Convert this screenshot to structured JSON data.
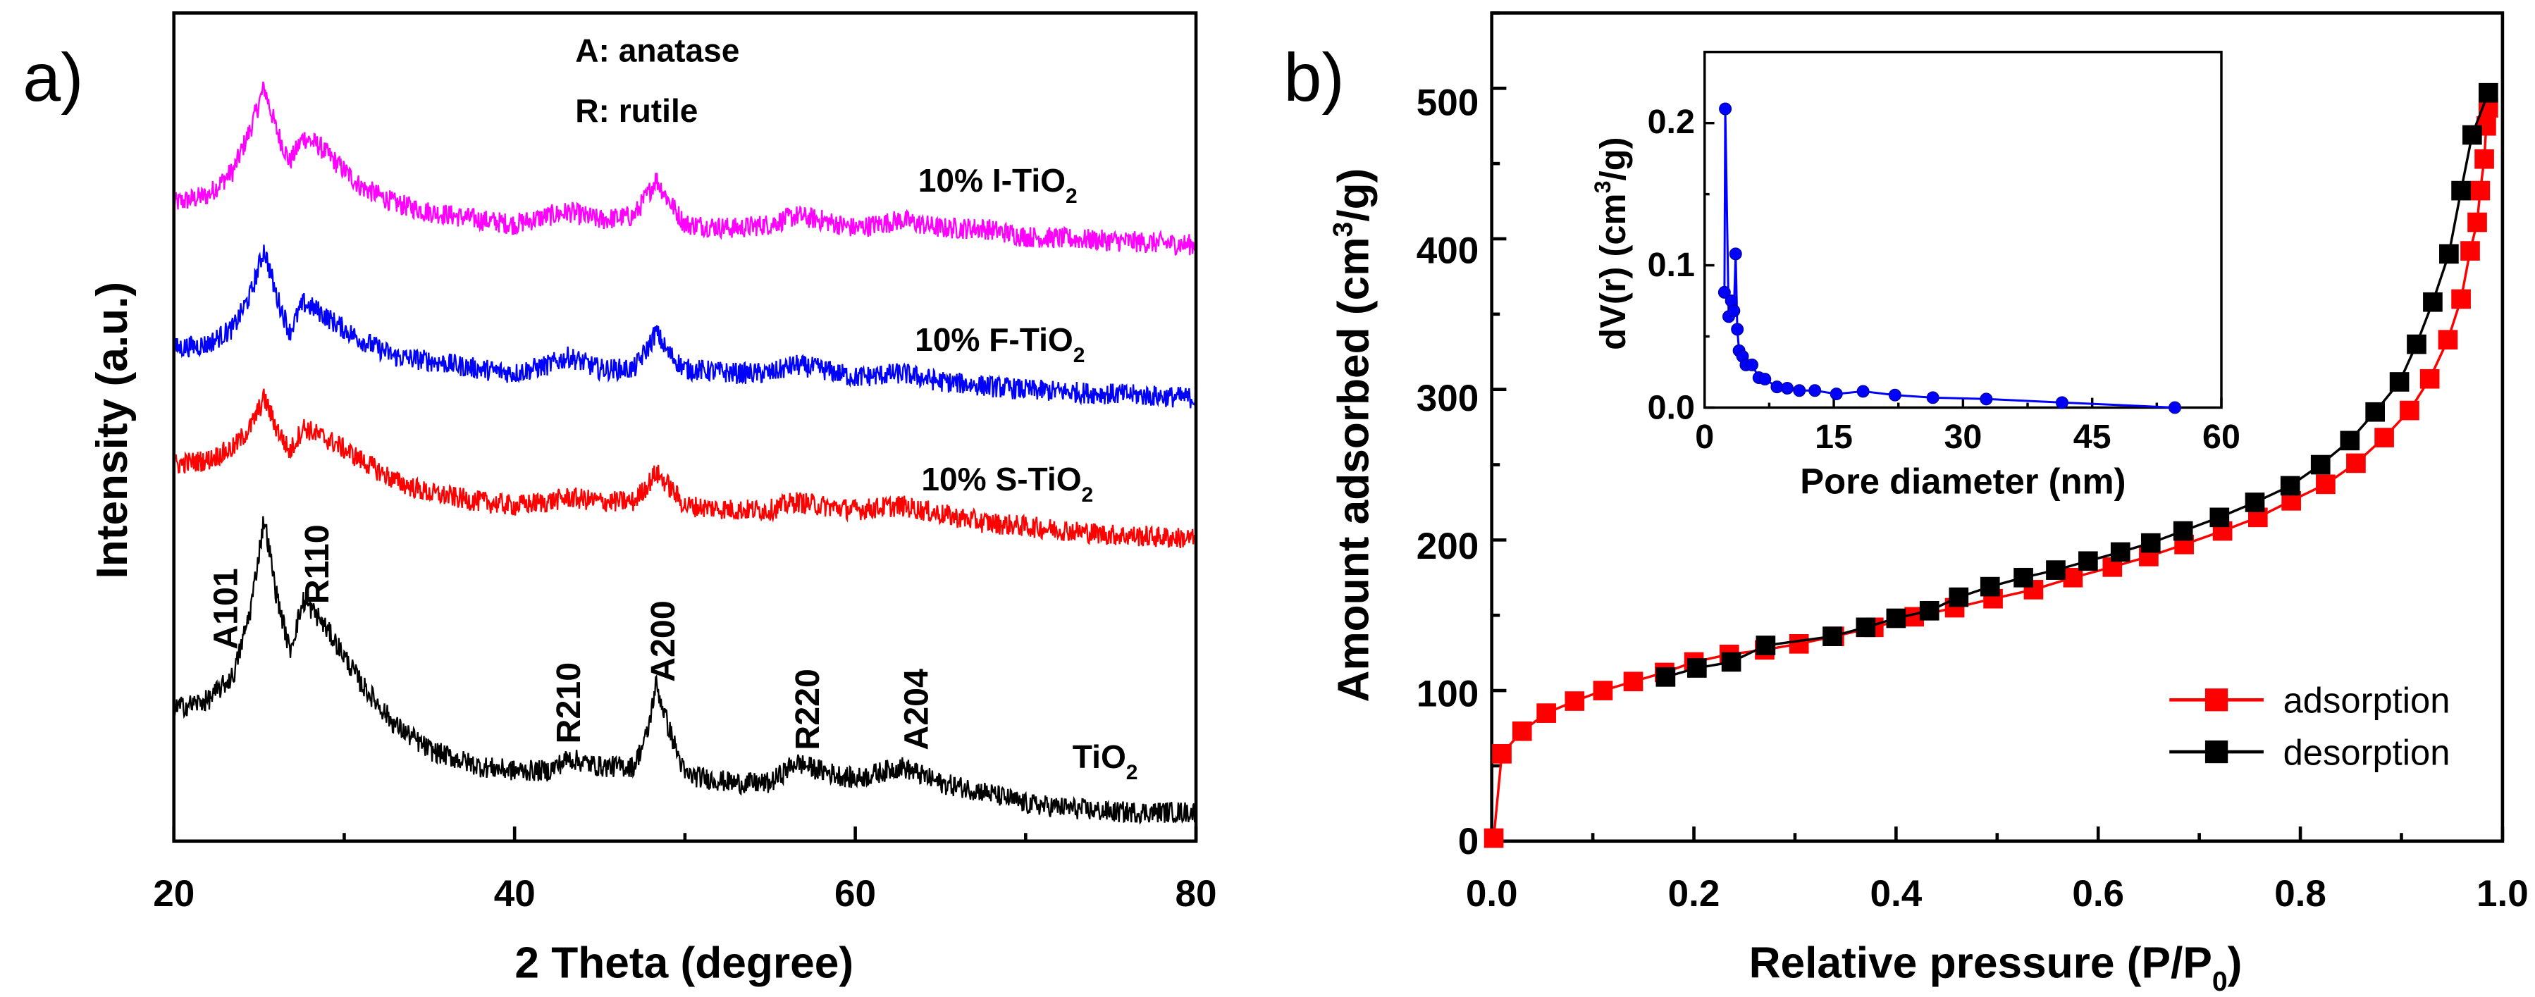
{
  "chart_data": [
    {
      "panel": "a)",
      "type": "line",
      "xlabel": "2 Theta (degree)",
      "ylabel": "Intensity (a.u.)",
      "xlim": [
        20,
        80
      ],
      "ylim": [
        0,
        100
      ],
      "xticks": [
        "20",
        "40",
        "60",
        "80"
      ],
      "legend_text": {
        "line1": "A: anatase",
        "line2": "R: rutile"
      },
      "x": [
        20,
        22,
        23.5,
        24.5,
        25.3,
        26,
        26.8,
        27.6,
        28.5,
        29.5,
        31,
        33,
        35,
        38,
        40,
        42,
        43.2,
        45,
        47,
        47.8,
        48.3,
        49,
        50,
        53,
        55,
        56.5,
        58,
        60,
        62.7,
        65,
        67.5,
        70,
        75,
        80
      ],
      "series": [
        {
          "name": "10% I-TiO2",
          "label_main": "10% I-TiO",
          "label_sub": "2",
          "color": "#ff00ff",
          "values": [
            77,
            78,
            81,
            86,
            91,
            86,
            82,
            85,
            84,
            82,
            79,
            77,
            76,
            75,
            74.5,
            75.5,
            76,
            75,
            75.5,
            78,
            80,
            77.5,
            74.5,
            74,
            74.5,
            75.5,
            75,
            74,
            75,
            74,
            74,
            73,
            72.5,
            72
          ]
        },
        {
          "name": "10% F-TiO2",
          "label_main": "10% F-TiO",
          "label_sub": "2",
          "color": "#0000ff",
          "values": [
            59.5,
            60,
            62,
            66,
            71.5,
            66,
            61.5,
            65,
            64,
            62.5,
            60.5,
            58.5,
            58,
            57,
            56.5,
            57.5,
            58.5,
            57,
            57,
            59.5,
            61.5,
            59,
            57,
            56.5,
            56.5,
            57.5,
            57,
            56,
            56.5,
            55.5,
            55,
            54.5,
            54,
            53.5
          ]
        },
        {
          "name": "10% S-TiO2",
          "label_main": "10% S-TiO",
          "label_sub": "2",
          "color": "#ff0000",
          "values": [
            45.5,
            46,
            47.5,
            50,
            53.5,
            50,
            47,
            50,
            49,
            48,
            46,
            43.5,
            42,
            41,
            40.5,
            41,
            41.5,
            41,
            41,
            43,
            44.5,
            43,
            40.5,
            40,
            40,
            41,
            40.5,
            40,
            40.5,
            39.5,
            38.5,
            38,
            37,
            36.5
          ]
        },
        {
          "name": "TiO2",
          "label_main": "TiO",
          "label_sub": "2",
          "color": "#000000",
          "values": [
            16,
            17,
            20,
            28,
            39,
            30,
            23,
            29,
            27,
            24,
            19,
            14,
            11,
            9,
            8.5,
            8.5,
            10,
            9,
            9,
            13,
            19,
            14,
            8,
            7,
            7,
            9.5,
            8.5,
            7.5,
            9,
            7,
            6,
            4.5,
            3.5,
            3.5
          ]
        }
      ],
      "peak_annotations": [
        {
          "label": "A101",
          "x": 25.3
        },
        {
          "label": "R110",
          "x": 27.6
        },
        {
          "label": "R210",
          "x": 43.2
        },
        {
          "label": "A200",
          "x": 48.3
        },
        {
          "label": "R220",
          "x": 56.5
        },
        {
          "label": "A204",
          "x": 62.7
        }
      ]
    },
    {
      "panel": "b)",
      "type": "line",
      "xlabel_main": "Relative pressure (P/P",
      "xlabel_sub": "0",
      "xlabel_end": ")",
      "ylabel_main": "Amount adsorbed (cm",
      "ylabel_sup": "3",
      "ylabel_end": "/g)",
      "xlim": [
        0,
        1.0
      ],
      "ylim": [
        0,
        550
      ],
      "xticks": [
        "0.0",
        "0.2",
        "0.4",
        "0.6",
        "0.8",
        "1.0"
      ],
      "yticks": [
        "0",
        "100",
        "200",
        "300",
        "400",
        "500"
      ],
      "legend_position": "bottom-right",
      "series": [
        {
          "name": "adsorption",
          "color": "#ff0000",
          "x": [
            0.002,
            0.01,
            0.03,
            0.054,
            0.082,
            0.11,
            0.14,
            0.171,
            0.2,
            0.235,
            0.27,
            0.304,
            0.339,
            0.378,
            0.418,
            0.458,
            0.496,
            0.536,
            0.575,
            0.614,
            0.65,
            0.685,
            0.723,
            0.758,
            0.791,
            0.825,
            0.855,
            0.883,
            0.908,
            0.928,
            0.946,
            0.959,
            0.968,
            0.975,
            0.978,
            0.982,
            0.984,
            0.986
          ],
          "y": [
            2,
            58,
            73,
            85,
            93,
            100,
            106,
            112,
            119,
            124,
            127,
            131,
            136,
            142,
            149,
            155,
            161,
            167,
            175,
            182,
            189,
            197,
            206,
            215,
            226,
            237,
            251,
            268,
            286,
            307,
            333,
            360,
            392,
            411,
            432,
            453,
            475,
            487
          ]
        },
        {
          "name": "desorption",
          "color": "#000000",
          "x": [
            0.986,
            0.97,
            0.959,
            0.947,
            0.931,
            0.915,
            0.898,
            0.874,
            0.849,
            0.82,
            0.79,
            0.755,
            0.72,
            0.684,
            0.652,
            0.622,
            0.59,
            0.558,
            0.526,
            0.493,
            0.462,
            0.433,
            0.4,
            0.37,
            0.337,
            0.271,
            0.237,
            0.203,
            0.172
          ],
          "y": [
            497,
            469,
            432,
            390,
            358,
            330,
            305,
            285,
            266,
            250,
            236,
            225,
            215,
            206,
            198,
            192,
            186,
            180,
            175,
            169,
            162,
            153,
            148,
            142,
            136,
            130,
            119,
            115,
            109
          ]
        }
      ],
      "inset": {
        "type": "line",
        "xlabel": "Pore diameter (nm)",
        "ylabel_main": "dV(r) (cm",
        "ylabel_sup": "3",
        "ylabel_end": "/g)",
        "xlim": [
          0,
          60
        ],
        "ylim": [
          0,
          0.25
        ],
        "xticks": [
          "0",
          "15",
          "30",
          "45",
          "60"
        ],
        "yticks": [
          "0.0",
          "0.1",
          "0.2"
        ],
        "color": "#0000ff",
        "x": [
          2.3,
          2.4,
          2.8,
          3.1,
          3.4,
          3.6,
          3.8,
          4.0,
          4.4,
          4.8,
          5.5,
          6.3,
          7.0,
          8.4,
          9.6,
          11,
          12.8,
          15.3,
          18.4,
          22.1,
          26.5,
          32.7,
          41.5,
          54.6
        ],
        "y": [
          0.081,
          0.21,
          0.064,
          0.075,
          0.068,
          0.108,
          0.055,
          0.04,
          0.036,
          0.03,
          0.03,
          0.021,
          0.02,
          0.0145,
          0.0136,
          0.012,
          0.012,
          0.0096,
          0.0114,
          0.0088,
          0.007,
          0.006,
          0.0035,
          0.0
        ]
      }
    }
  ]
}
